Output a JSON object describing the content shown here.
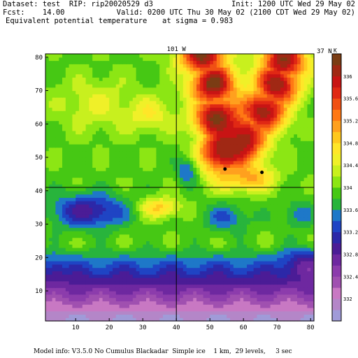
{
  "header": {
    "dataset": "Dataset: test  RIP: rip20020529 d3",
    "init": "Init: 1200 UTC Wed 29 May 02",
    "fcst": "Fcst:    14.00",
    "valid": "Valid: 0200 UTC Thu 30 May 02 (2100 CDT Wed 29 May 02)",
    "field": "Equivalent potential temperature",
    "sigma": "at sigma = 0.983"
  },
  "footer": "Model info: V3.5.0 No Cumulus Blackadar  Simple ice    1 km,  29 levels,     3 sec",
  "chart_data": {
    "type": "heatmap",
    "title": "Equivalent potential temperature",
    "xlim": [
      1,
      81
    ],
    "ylim": [
      1,
      81
    ],
    "x_ticks": [
      10,
      20,
      30,
      40,
      50,
      60,
      70,
      80
    ],
    "y_ticks": [
      10,
      20,
      30,
      40,
      50,
      60,
      70,
      80
    ],
    "cross_lines": {
      "vertical_x": 40,
      "vertical_label": "101 W",
      "horizontal_y": 41,
      "horizontal_label": "37 N"
    },
    "colorbar": {
      "unit": "K",
      "levels": [
        331.6,
        331.8,
        332,
        332.2,
        332.4,
        332.6,
        332.8,
        333,
        333.2,
        333.4,
        333.6,
        333.8,
        334,
        334.2,
        334.4,
        334.6,
        334.8,
        335,
        335.2,
        335.4,
        335.6,
        335.8,
        336,
        336.2
      ],
      "tick_labels": [
        "332",
        "332.4",
        "332.8",
        "333.2",
        "333.6",
        "334",
        "334.4",
        "334.8",
        "335.2",
        "335.6",
        "336"
      ],
      "colors": [
        "#a09bd8",
        "#b486c8",
        "#c878c3",
        "#a050b0",
        "#8c3cac",
        "#6e28a0",
        "#4b1c96",
        "#2c28a8",
        "#1f44c4",
        "#1e78c8",
        "#28b43c",
        "#46c814",
        "#8ce614",
        "#c8f01e",
        "#f0f028",
        "#ffe628",
        "#ffc81e",
        "#ffa01e",
        "#ff7814",
        "#f05014",
        "#e02814",
        "#c81414",
        "#a02814",
        "#7a3c14"
      ]
    },
    "features": [
      {
        "kind": "background",
        "value": 333.95
      },
      {
        "kind": "plume",
        "value": 336.3,
        "path": [
          [
            48,
            81
          ],
          [
            51,
            72
          ],
          [
            52,
            62
          ],
          [
            54,
            52
          ]
        ],
        "w": [
          0.4,
          0.45,
          0.35,
          0.1
        ],
        "h": [
          0.18,
          0.18,
          0.2,
          0.12
        ]
      },
      {
        "kind": "plume",
        "value": 336.2,
        "path": [
          [
            72,
            79
          ],
          [
            70,
            72
          ],
          [
            66,
            64
          ],
          [
            60,
            56
          ]
        ],
        "w": [
          0.3,
          0.25,
          0.2,
          0.1
        ],
        "h": [
          0.25,
          0.2,
          0.15,
          0.1
        ]
      },
      {
        "kind": "blob",
        "value": 334.4,
        "x": 16,
        "y": 66,
        "sx": 12,
        "sy": 8
      },
      {
        "kind": "blob",
        "value": 334.6,
        "x": 32,
        "y": 63,
        "sx": 7,
        "sy": 5
      },
      {
        "kind": "blob",
        "value": 335.1,
        "x": 61,
        "y": 44,
        "sx": 8,
        "sy": 4
      },
      {
        "kind": "blob",
        "value": 334.9,
        "x": 35,
        "y": 35,
        "sx": 6,
        "sy": 3
      },
      {
        "kind": "blob",
        "value": 332.9,
        "x": 14,
        "y": 34,
        "sx": 11,
        "sy": 5
      },
      {
        "kind": "blob",
        "value": 333.5,
        "x": 76,
        "y": 33,
        "sx": 5,
        "sy": 4
      },
      {
        "kind": "blob",
        "value": 333.4,
        "x": 43,
        "y": 46,
        "sx": 3,
        "sy": 4
      },
      {
        "kind": "blob",
        "value": 333.4,
        "x": 55,
        "y": 32,
        "sx": 7,
        "sy": 4
      },
      {
        "kind": "blob",
        "value": 333.5,
        "x": 4,
        "y": 16,
        "sx": 3,
        "sy": 4
      },
      {
        "kind": "south",
        "value": 331.8,
        "y0": 24,
        "y1": 2
      },
      {
        "kind": "blob",
        "value": 332.7,
        "x": 78,
        "y": 17,
        "sx": 6,
        "sy": 5
      }
    ],
    "markers": [
      [
        54.5,
        46.5
      ],
      [
        65.5,
        45.5
      ]
    ]
  }
}
